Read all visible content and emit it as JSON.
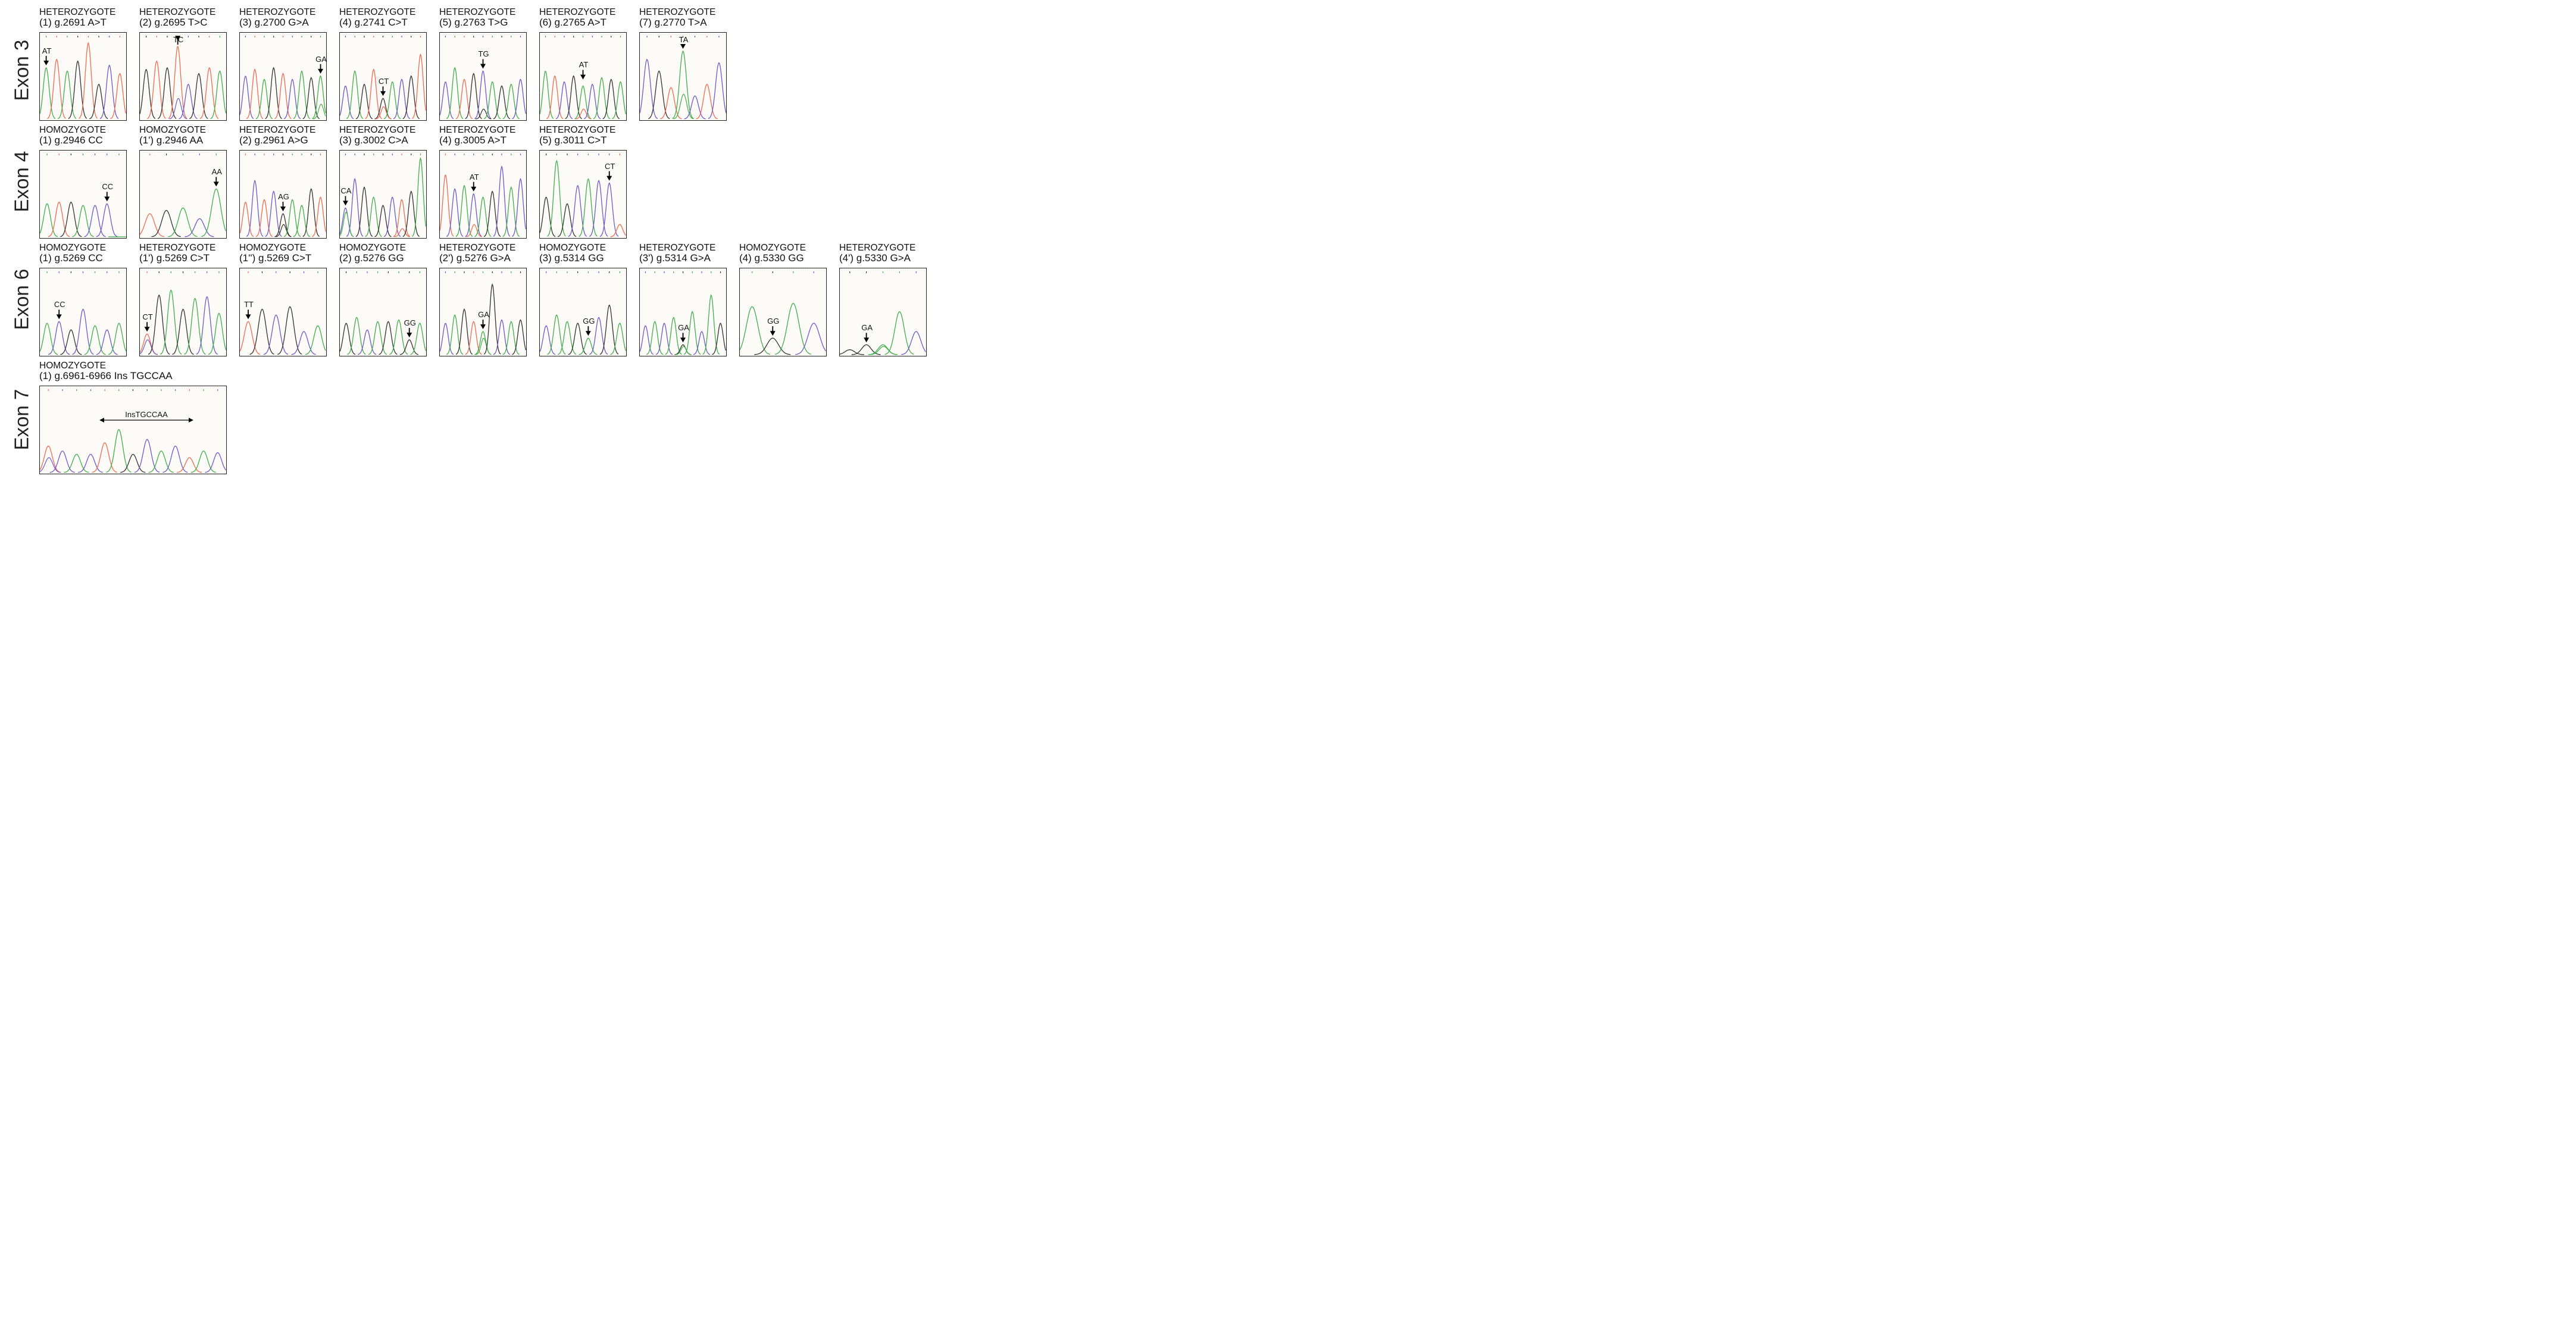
{
  "colors": {
    "A": "#3fae49",
    "C": "#6a5acd",
    "G": "#333333",
    "T": "#f06a50",
    "border": "#222222"
  },
  "rows": [
    {
      "exon": "Exon 3",
      "panels": [
        {
          "zygosity": "HETEROZYGOTE",
          "variant": "(1) g.2691 A>T",
          "marker": "AT"
        },
        {
          "zygosity": "HETEROZYGOTE",
          "variant": "(2) g.2695 T>C",
          "marker": "TC"
        },
        {
          "zygosity": "HETEROZYGOTE",
          "variant": "(3) g.2700 G>A",
          "marker": "GA"
        },
        {
          "zygosity": "HETEROZYGOTE",
          "variant": "(4) g.2741 C>T",
          "marker": "CT"
        },
        {
          "zygosity": "HETEROZYGOTE",
          "variant": "(5) g.2763 T>G",
          "marker": "TG"
        },
        {
          "zygosity": "HETEROZYGOTE",
          "variant": "(6) g.2765 A>T",
          "marker": "AT"
        },
        {
          "zygosity": "HETEROZYGOTE",
          "variant": "(7) g.2770 T>A",
          "marker": "TA"
        }
      ]
    },
    {
      "exon": "Exon 4",
      "panels": [
        {
          "zygosity": "HOMOZYGOTE",
          "variant": "(1) g.2946 CC",
          "marker": "CC"
        },
        {
          "zygosity": "HOMOZYGOTE",
          "variant": "(1') g.2946 AA",
          "marker": "AA"
        },
        {
          "zygosity": "HETEROZYGOTE",
          "variant": "(2) g.2961 A>G",
          "marker": "AG"
        },
        {
          "zygosity": "HETEROZYGOTE",
          "variant": "(3) g.3002 C>A",
          "marker": "CA"
        },
        {
          "zygosity": "HETEROZYGOTE",
          "variant": "(4) g.3005 A>T",
          "marker": "AT"
        },
        {
          "zygosity": "HETEROZYGOTE",
          "variant": "(5) g.3011 C>T",
          "marker": "CT"
        }
      ]
    },
    {
      "exon": "Exon 6",
      "panels": [
        {
          "zygosity": "HOMOZYGOTE",
          "variant": "(1) g.5269 CC",
          "marker": "CC"
        },
        {
          "zygosity": "HETEROZYGOTE",
          "variant": "(1') g.5269 C>T",
          "marker": "CT"
        },
        {
          "zygosity": "HOMOZYGOTE",
          "variant": "(1'') g.5269 C>T",
          "marker": "TT"
        },
        {
          "zygosity": "HOMOZYGOTE",
          "variant": "(2) g.5276 GG",
          "marker": "GG"
        },
        {
          "zygosity": "HETEROZYGOTE",
          "variant": "(2') g.5276 G>A",
          "marker": "GA"
        },
        {
          "zygosity": "HOMOZYGOTE",
          "variant": "(3) g.5314 GG",
          "marker": "GG"
        },
        {
          "zygosity": "HETEROZYGOTE",
          "variant": "(3') g.5314 G>A",
          "marker": "GA"
        },
        {
          "zygosity": "HOMOZYGOTE",
          "variant": "(4) g.5330 GG",
          "marker": "GG"
        },
        {
          "zygosity": "HETEROZYGOTE",
          "variant": "(4') g.5330 G>A",
          "marker": "GA"
        }
      ]
    },
    {
      "exon": "Exon 7",
      "panels": [
        {
          "zygosity": "HOMOZYGOTE",
          "variant": "(1) g.6961-6966 Ins TGCCAA",
          "marker": "InsTGCCAA"
        }
      ]
    }
  ]
}
